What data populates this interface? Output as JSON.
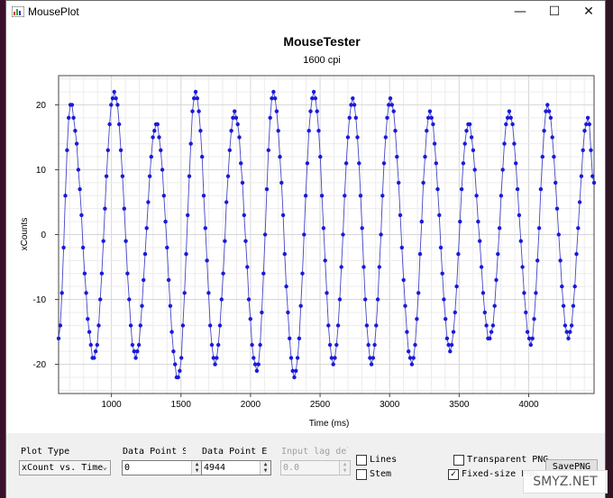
{
  "window": {
    "title": "MousePlot",
    "minimize_glyph": "—",
    "maximize_glyph": "☐",
    "close_glyph": "✕"
  },
  "colors": {
    "series": "#1a1adb",
    "line": "#4646c8",
    "grid": "#e2e2e2"
  },
  "chart_data": {
    "type": "scatter",
    "title": "MouseTester",
    "subtitle": "1600 cpi",
    "xlabel": "Time (ms)",
    "ylabel": "xCounts",
    "xlim": [
      620,
      4470
    ],
    "ylim": [
      -24.5,
      24.5
    ],
    "xticks": [
      1000,
      1500,
      2000,
      2500,
      3000,
      3500,
      4000
    ],
    "yticks": [
      -20,
      -10,
      0,
      10,
      20
    ],
    "grid": true,
    "series": [
      {
        "peaks": [
          [
            620,
            -16
          ],
          [
            705,
            20
          ],
          [
            875,
            -19
          ],
          [
            1020,
            22
          ],
          [
            1175,
            -19
          ],
          [
            1320,
            17
          ],
          [
            1480,
            -22
          ],
          [
            1605,
            22
          ],
          [
            1745,
            -20
          ],
          [
            1885,
            19
          ],
          [
            2045,
            -21
          ],
          [
            2165,
            22
          ],
          [
            2315,
            -22
          ],
          [
            2455,
            22
          ],
          [
            2595,
            -20
          ],
          [
            2735,
            21
          ],
          [
            2870,
            -20
          ],
          [
            3005,
            21
          ],
          [
            3160,
            -20
          ],
          [
            3290,
            19
          ],
          [
            3435,
            -18
          ],
          [
            3565,
            17
          ],
          [
            3720,
            -16
          ],
          [
            3860,
            19
          ],
          [
            4015,
            -17
          ],
          [
            4135,
            20
          ],
          [
            4285,
            -16
          ],
          [
            4425,
            18
          ],
          [
            4470,
            8
          ]
        ]
      }
    ]
  },
  "controls": {
    "plot_type_label": "Plot Type",
    "plot_type_value": "xCount vs. Time",
    "data_start_label": "Data Point Start",
    "data_start_value": "0",
    "data_end_label": "Data Point End",
    "data_end_value": "4944",
    "input_lag_label": "Input lag delay",
    "input_lag_value": "0.0",
    "lines_label": "Lines",
    "stem_label": "Stem",
    "transparent_png_label": "Transparent PNG",
    "fixed_size_png_label": "Fixed-size PNG",
    "fixed_size_checked": "✓",
    "save_png_label": "SavePNG"
  },
  "watermark": {
    "text": "SMYZ.NET"
  }
}
